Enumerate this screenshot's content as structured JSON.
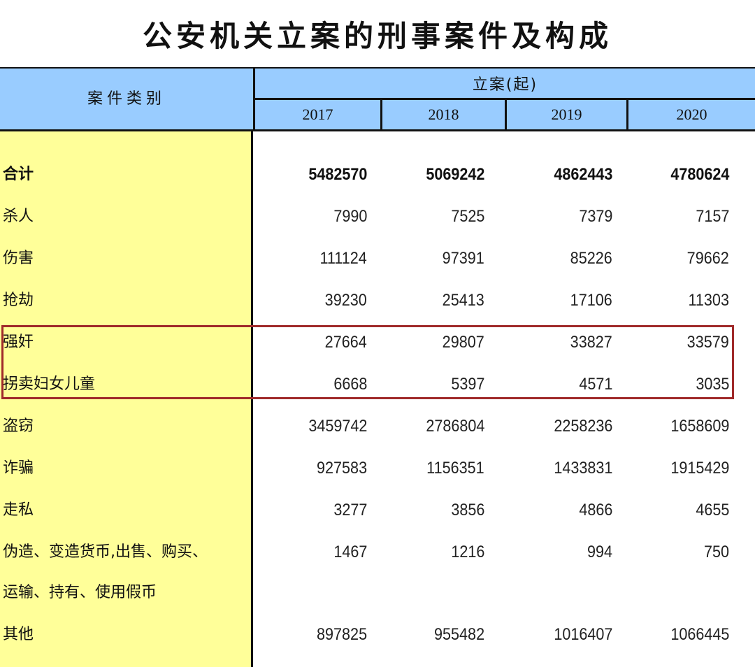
{
  "title": "公安机关立案的刑事案件及构成",
  "header": {
    "category": "案件类别",
    "group": "立案(起)",
    "years": [
      "2017",
      "2018",
      "2019",
      "2020"
    ]
  },
  "highlight_color": "#a02a2a",
  "colors": {
    "header_bg": "#99ccff",
    "category_bg": "#ffff99"
  },
  "rows": [
    {
      "label": [
        "合计"
      ],
      "bold": true,
      "values": [
        "5482570",
        "5069242",
        "4862443",
        "4780624"
      ]
    },
    {
      "label": [
        "杀人"
      ],
      "values": [
        "7990",
        "7525",
        "7379",
        "7157"
      ]
    },
    {
      "label": [
        "伤害"
      ],
      "values": [
        "111124",
        "97391",
        "85226",
        "79662"
      ]
    },
    {
      "label": [
        "抢劫"
      ],
      "values": [
        "39230",
        "25413",
        "17106",
        "11303"
      ]
    },
    {
      "label": [
        "强奸"
      ],
      "highlighted": true,
      "values": [
        "27664",
        "29807",
        "33827",
        "33579"
      ]
    },
    {
      "label": [
        "拐卖妇女儿童"
      ],
      "highlighted": true,
      "values": [
        "6668",
        "5397",
        "4571",
        "3035"
      ]
    },
    {
      "label": [
        "盗窃"
      ],
      "values": [
        "3459742",
        "2786804",
        "2258236",
        "1658609"
      ]
    },
    {
      "label": [
        "诈骗"
      ],
      "values": [
        "927583",
        "1156351",
        "1433831",
        "1915429"
      ]
    },
    {
      "label": [
        "走私"
      ],
      "values": [
        "3277",
        "3856",
        "4866",
        "4655"
      ]
    },
    {
      "label": [
        "伪造、变造货币,出售、购买、",
        " 运输、持有、使用假币"
      ],
      "values": [
        "1467",
        "1216",
        "994",
        "750"
      ]
    },
    {
      "label": [
        "其他"
      ],
      "values": [
        "897825",
        "955482",
        "1016407",
        "1066445"
      ]
    }
  ]
}
